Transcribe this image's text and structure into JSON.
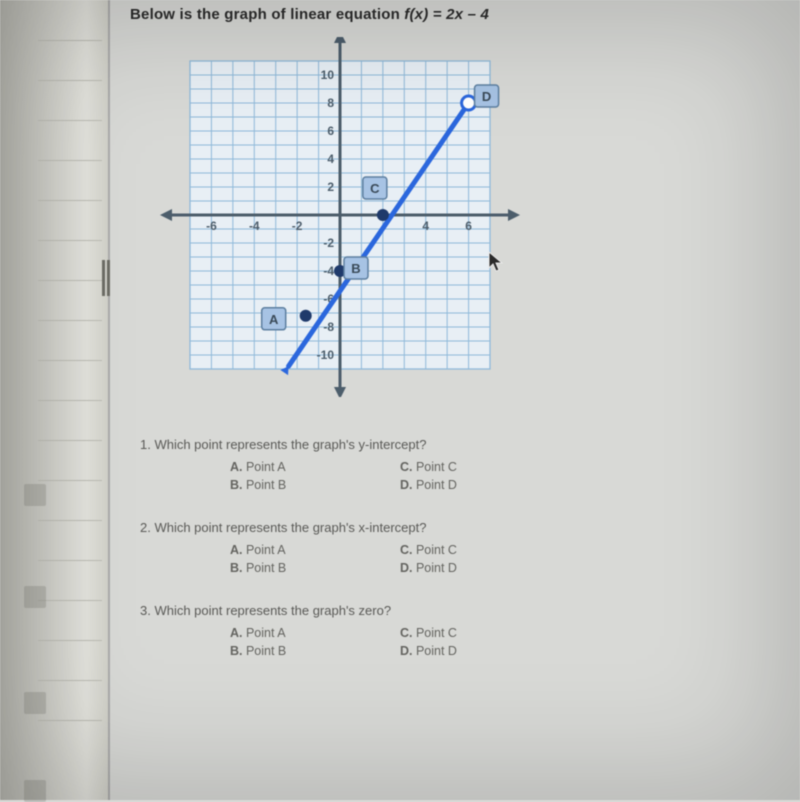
{
  "title_prefix": "Below is the graph of linear equation ",
  "title_func": "f(x) = 2x – 4",
  "graph": {
    "type": "line",
    "xlim": [
      -7,
      7
    ],
    "ylim": [
      -11,
      11
    ],
    "xtick_labels": [
      "-6",
      "-4",
      "-2",
      "",
      "4",
      "6"
    ],
    "xtick_positions": [
      -6,
      -4,
      -2,
      2,
      4,
      6
    ],
    "ytick_labels": [
      "10",
      "8",
      "6",
      "4",
      "2",
      "-2",
      "-4",
      "-6",
      "-8",
      "-10"
    ],
    "ytick_positions": [
      10,
      8,
      6,
      4,
      2,
      -2,
      -4,
      -6,
      -8,
      -10
    ],
    "grid_color": "#8fb9d9",
    "bg_color": "#e8eff5",
    "axis_color": "#4c5d6b",
    "line_color": "#2b67dd",
    "line_width": 5,
    "line_points": [
      [
        -2.4,
        -10.8
      ],
      [
        6,
        8
      ]
    ],
    "endpoint_open": true,
    "annotation_box_fill": "#a7c3e4",
    "annotation_box_stroke": "#5d7fa0",
    "annotation_text_color": "#3a4a58",
    "closed_point_fill": "#1f3a6b",
    "open_point_stroke": "#2b67dd",
    "points": {
      "A": {
        "coord": [
          -1.6,
          -7.2
        ],
        "closed": true,
        "label_offset": [
          -32,
          4
        ]
      },
      "B": {
        "coord": [
          0,
          -4
        ],
        "closed": true,
        "label_offset": [
          16,
          -2
        ]
      },
      "C": {
        "coord": [
          2,
          0
        ],
        "closed": true,
        "label_offset": [
          -8,
          -26
        ]
      },
      "D": {
        "coord": [
          6,
          8
        ],
        "closed": false,
        "label_offset": [
          18,
          -6
        ]
      }
    },
    "label_fontsize": 13
  },
  "questions": [
    {
      "n": "1.",
      "text": "Which point represents the graph's y-intercept?",
      "choices": [
        {
          "k": "A.",
          "v": "Point A"
        },
        {
          "k": "B.",
          "v": "Point B"
        },
        {
          "k": "C.",
          "v": "Point C"
        },
        {
          "k": "D.",
          "v": "Point D"
        }
      ]
    },
    {
      "n": "2.",
      "text": "Which point represents the graph's x-intercept?",
      "choices": [
        {
          "k": "A.",
          "v": "Point A"
        },
        {
          "k": "B.",
          "v": "Point B"
        },
        {
          "k": "C.",
          "v": "Point C"
        },
        {
          "k": "D.",
          "v": "Point D"
        }
      ]
    },
    {
      "n": "3.",
      "text": "Which point represents the graph's zero?",
      "choices": [
        {
          "k": "A.",
          "v": "Point A"
        },
        {
          "k": "B.",
          "v": "Point B"
        },
        {
          "k": "C.",
          "v": "Point C"
        },
        {
          "k": "D.",
          "v": "Point D"
        }
      ]
    }
  ]
}
